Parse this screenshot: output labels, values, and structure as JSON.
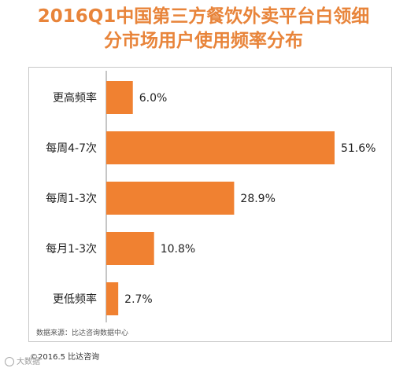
{
  "title_line1": "2016Q1中国第三方餐饮外卖平台白领细",
  "title_line2": "分市场用户使用频率分布",
  "source": "数据来源：比达咨询数据中心",
  "copyright": "©2016.5  比达咨询",
  "watermark": "大数据",
  "colors": {
    "bar": "#f08131",
    "title": "#e8843a"
  },
  "chart_data": {
    "type": "bar",
    "orientation": "horizontal",
    "categories": [
      "更高频率",
      "每周4-7次",
      "每周1-3次",
      "每月1-3次",
      "更低频率"
    ],
    "values": [
      6.0,
      51.6,
      28.9,
      10.8,
      2.7
    ],
    "value_labels": [
      "6.0%",
      "51.6%",
      "28.9%",
      "10.8%",
      "2.7%"
    ],
    "xlim": [
      0,
      60
    ],
    "grid": false,
    "legend": "none"
  }
}
